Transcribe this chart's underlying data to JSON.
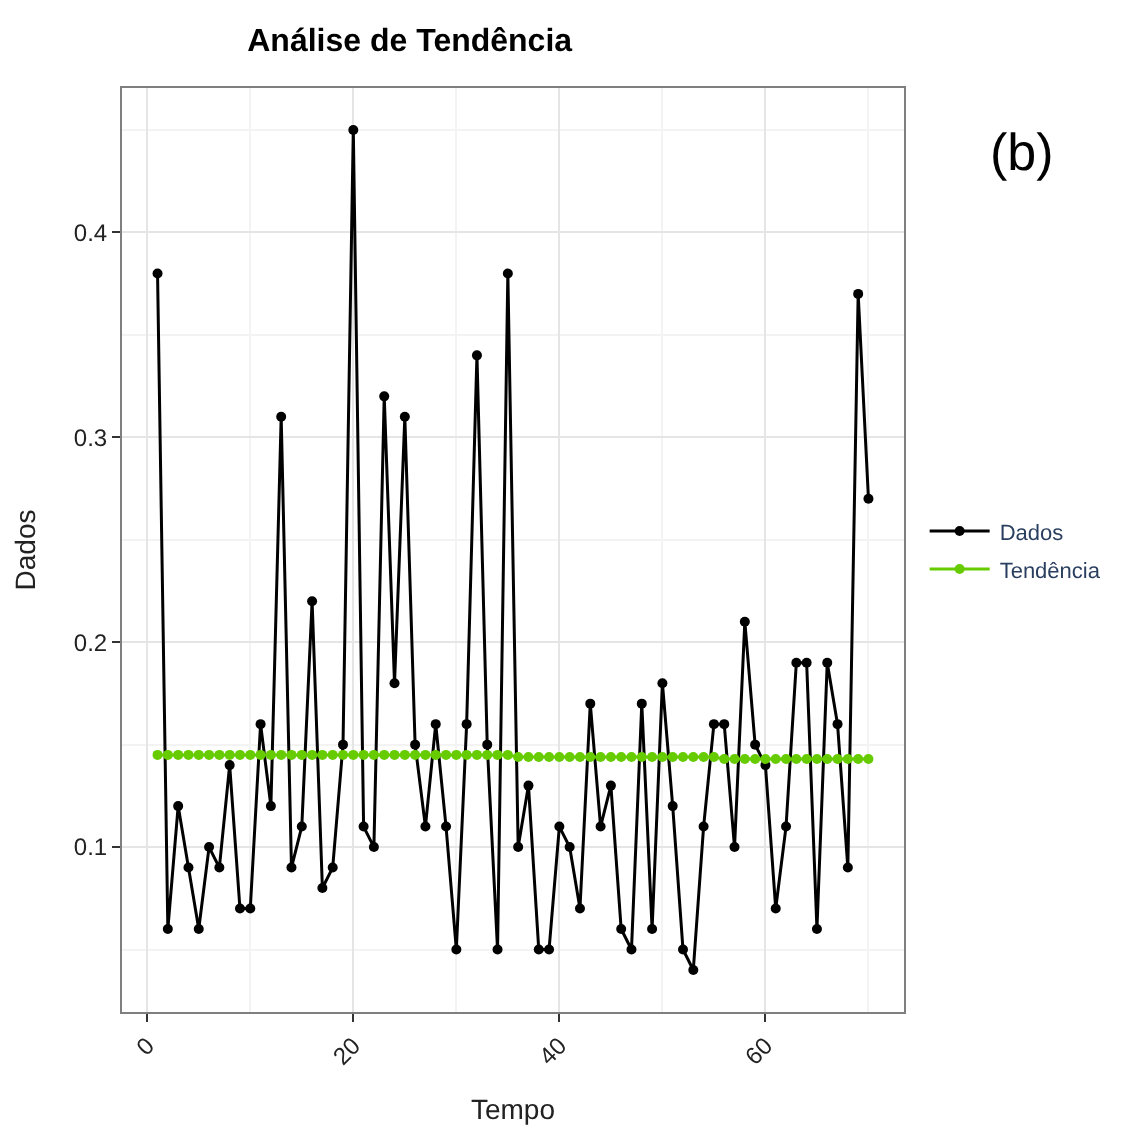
{
  "chart_data": {
    "type": "line",
    "title": "Análise de Tendência",
    "xlabel": "Tempo",
    "ylabel": "Dados",
    "annotations": [
      "(b)"
    ],
    "x": [
      1,
      2,
      3,
      4,
      5,
      6,
      7,
      8,
      9,
      10,
      11,
      12,
      13,
      14,
      15,
      16,
      17,
      18,
      19,
      20,
      21,
      22,
      23,
      24,
      25,
      26,
      27,
      28,
      29,
      30,
      31,
      32,
      33,
      34,
      35,
      36,
      37,
      38,
      39,
      40,
      41,
      42,
      43,
      44,
      45,
      46,
      47,
      48,
      49,
      50,
      51,
      52,
      53,
      54,
      55,
      56,
      57,
      58,
      59,
      60,
      61,
      62,
      63,
      64,
      65,
      66,
      67,
      68,
      69,
      70
    ],
    "series": [
      {
        "name": "Dados",
        "color": "#000000",
        "values": [
          0.38,
          0.06,
          0.12,
          0.09,
          0.06,
          0.1,
          0.09,
          0.14,
          0.07,
          0.07,
          0.16,
          0.12,
          0.31,
          0.09,
          0.11,
          0.22,
          0.08,
          0.09,
          0.15,
          0.45,
          0.11,
          0.1,
          0.32,
          0.18,
          0.31,
          0.15,
          0.11,
          0.16,
          0.11,
          0.05,
          0.16,
          0.34,
          0.15,
          0.05,
          0.38,
          0.1,
          0.13,
          0.05,
          0.05,
          0.11,
          0.1,
          0.07,
          0.17,
          0.11,
          0.13,
          0.06,
          0.05,
          0.17,
          0.06,
          0.18,
          0.12,
          0.05,
          0.04,
          0.11,
          0.16,
          0.16,
          0.1,
          0.21,
          0.15,
          0.14,
          0.07,
          0.11,
          0.19,
          0.19,
          0.06,
          0.19,
          0.16,
          0.09,
          0.37,
          0.27
        ]
      },
      {
        "name": "Tendência",
        "color": "#66cc00",
        "values": [
          0.145,
          0.145,
          0.145,
          0.145,
          0.145,
          0.145,
          0.145,
          0.145,
          0.145,
          0.145,
          0.145,
          0.145,
          0.145,
          0.145,
          0.145,
          0.145,
          0.145,
          0.145,
          0.145,
          0.145,
          0.145,
          0.145,
          0.145,
          0.145,
          0.145,
          0.145,
          0.145,
          0.145,
          0.145,
          0.145,
          0.145,
          0.145,
          0.145,
          0.145,
          0.145,
          0.144,
          0.144,
          0.144,
          0.144,
          0.144,
          0.144,
          0.144,
          0.144,
          0.144,
          0.144,
          0.144,
          0.144,
          0.144,
          0.144,
          0.144,
          0.144,
          0.144,
          0.144,
          0.144,
          0.144,
          0.143,
          0.143,
          0.143,
          0.143,
          0.143,
          0.143,
          0.143,
          0.143,
          0.143,
          0.143,
          0.143,
          0.143,
          0.143,
          0.143,
          0.143
        ]
      }
    ],
    "xlim": [
      -2.45,
      73.45
    ],
    "xticks": [
      0,
      20,
      40,
      60
    ],
    "ylim": [
      0.0195,
      0.4705
    ],
    "yticks": [
      0.1,
      0.2,
      0.3,
      0.4
    ],
    "grid": true,
    "legend": "right",
    "marker": "circle",
    "line_style": "solid"
  }
}
